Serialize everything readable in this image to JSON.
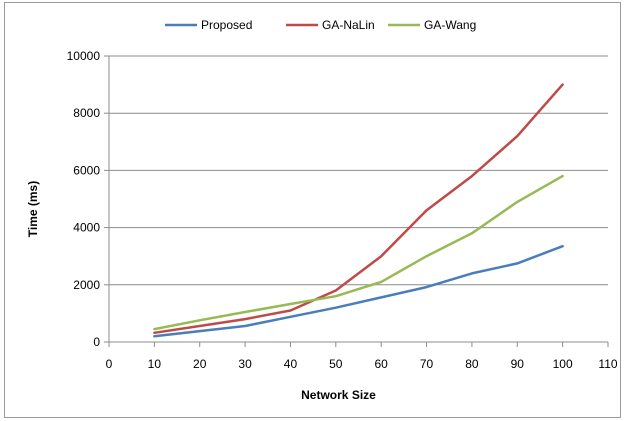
{
  "chart_data": {
    "type": "line",
    "title": "",
    "xlabel": "Network Size",
    "ylabel": "Time (ms)",
    "x": [
      10,
      20,
      30,
      40,
      50,
      60,
      70,
      80,
      90,
      100
    ],
    "xlim": [
      0,
      110
    ],
    "ylim": [
      0,
      10000
    ],
    "x_ticks": [
      "0",
      "10",
      "20",
      "30",
      "40",
      "50",
      "60",
      "70",
      "80",
      "90",
      "100",
      "110"
    ],
    "y_ticks": [
      "0",
      "2000",
      "4000",
      "6000",
      "8000",
      "10000"
    ],
    "grid": "horizontal",
    "legend_position": "top",
    "series": [
      {
        "name": "Proposed",
        "color": "#4a7ebb",
        "values": [
          200,
          380,
          560,
          880,
          1200,
          1560,
          1920,
          2400,
          2750,
          3350
        ]
      },
      {
        "name": "GA-NaLin",
        "color": "#be4b48",
        "values": [
          320,
          560,
          800,
          1100,
          1800,
          3000,
          4600,
          5800,
          7200,
          9000
        ]
      },
      {
        "name": "GA-Wang",
        "color": "#98b954",
        "values": [
          450,
          760,
          1050,
          1330,
          1600,
          2100,
          3000,
          3800,
          4900,
          5800
        ]
      }
    ]
  }
}
